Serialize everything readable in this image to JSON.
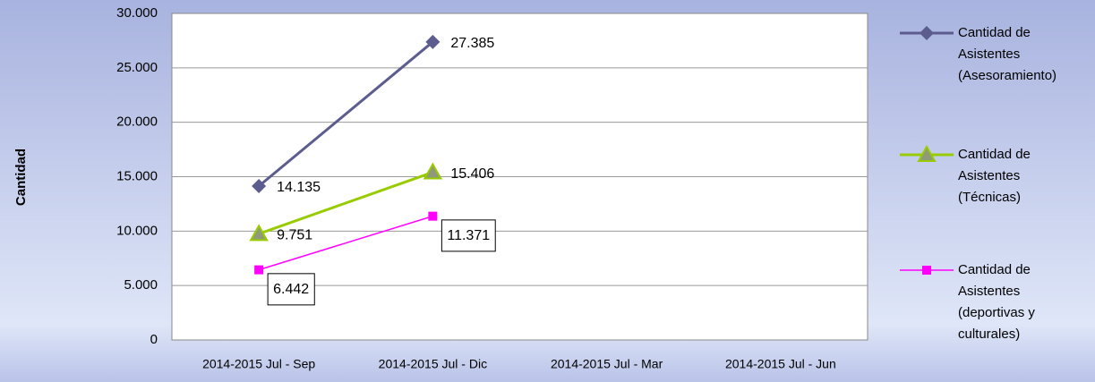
{
  "chart_data": {
    "type": "line",
    "y_label": "Cantidad",
    "categories": [
      "2014-2015 Jul - Sep",
      "2014-2015 Jul - Dic",
      "2014-2015 Jul - Mar",
      "2014-2015 Jul - Jun"
    ],
    "series": [
      {
        "name": "Cantidad de Asistentes (Asesoramiento)",
        "color": "#5c5c8e",
        "marker": "diamond",
        "values": [
          14135,
          27385,
          null,
          null
        ],
        "value_labels": [
          "14.135",
          "27.385",
          null,
          null
        ]
      },
      {
        "name": "Cantidad de Asistentes (Técnicas)",
        "color": "#99cc00",
        "marker": "triangle",
        "values": [
          9751,
          15406,
          null,
          null
        ],
        "value_labels": [
          "9.751",
          "15.406",
          null,
          null
        ]
      },
      {
        "name": "Cantidad de Asistentes (deportivas y culturales)",
        "color": "#ff00ff",
        "marker": "square",
        "values": [
          6442,
          11371,
          null,
          null
        ],
        "value_labels": [
          "6.442",
          "11.371",
          null,
          null
        ]
      }
    ],
    "ylim": [
      0,
      30000
    ],
    "yticks": [
      0,
      {
        "value": 5000,
        "label": "5.000"
      },
      {
        "value": 10000,
        "label": "10.000"
      },
      {
        "value": 15000,
        "label": "15.000"
      },
      {
        "value": 20000,
        "label": "20.000"
      },
      {
        "value": 25000,
        "label": "25.000"
      },
      {
        "value": 30000,
        "label": "30.000"
      }
    ],
    "grid": true,
    "legend": "right"
  }
}
